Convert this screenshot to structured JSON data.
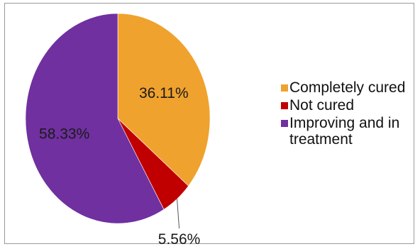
{
  "chart_data": {
    "type": "pie",
    "title": "",
    "slices": [
      {
        "label": "Completely cured",
        "value": 36.11,
        "value_label": "36.11%",
        "color": "#F0A22E"
      },
      {
        "label": "Not cured",
        "value": 5.56,
        "value_label": "5.56%",
        "color": "#C00000"
      },
      {
        "label": "Improving and in treatment",
        "value": 58.33,
        "value_label": "58.33%",
        "color": "#7030A0"
      }
    ],
    "start_angle": "12 o'clock",
    "direction": "clockwise",
    "legend_position": "right"
  }
}
